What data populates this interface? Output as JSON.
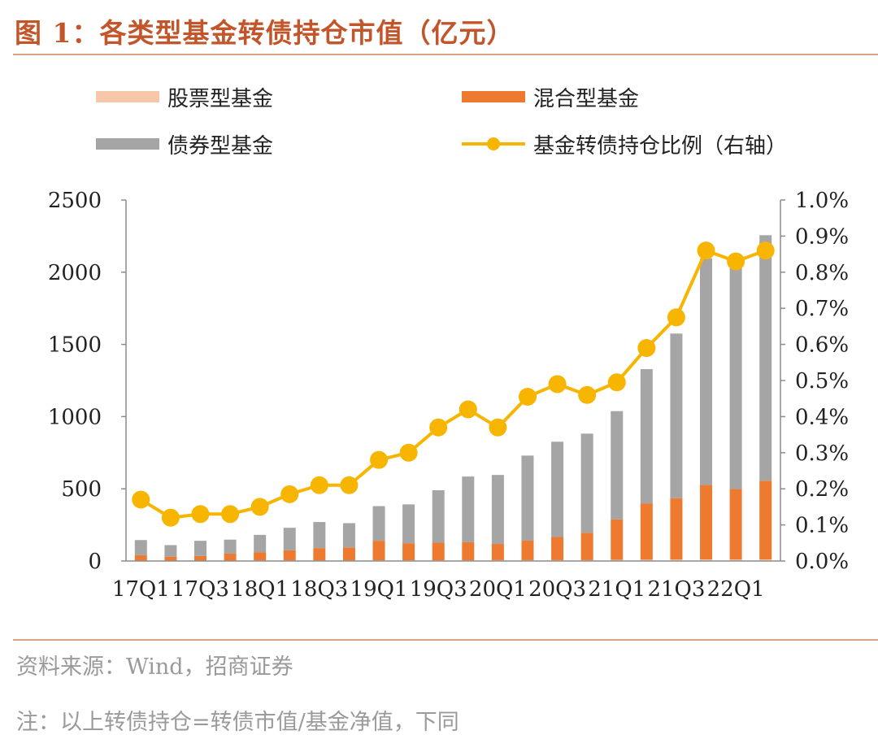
{
  "figure_title": "图 1：各类型基金转债持仓市值（亿元）",
  "source": "资料来源：Wind，招商证券",
  "note": "注：以上转债持仓=转债市值/基金净值，下同",
  "colors": {
    "title": "#c2552a",
    "rule": "#d9a58a",
    "stock": "#f6c7a8",
    "mixed": "#ee7a30",
    "bond": "#a5a5a5",
    "ratio": "#f7b500",
    "axis": "#8c8c8c",
    "text": "#222222",
    "muted": "#9a9a9a"
  },
  "chart_data": {
    "type": "bar",
    "stacked": true,
    "categories": [
      "17Q1",
      "17Q2",
      "17Q3",
      "17Q4",
      "18Q1",
      "18Q2",
      "18Q3",
      "18Q4",
      "19Q1",
      "19Q2",
      "19Q3",
      "19Q4",
      "20Q1",
      "20Q2",
      "20Q3",
      "20Q4",
      "21Q1",
      "21Q2",
      "21Q3",
      "21Q4",
      "22Q1",
      "22Q2"
    ],
    "xtick_labels": [
      "17Q1",
      "",
      "17Q3",
      "",
      "18Q1",
      "",
      "18Q3",
      "",
      "19Q1",
      "",
      "19Q3",
      "",
      "20Q1",
      "",
      "20Q3",
      "",
      "21Q1",
      "",
      "21Q3",
      "",
      "22Q1",
      ""
    ],
    "series": [
      {
        "name": "股票型基金",
        "axis": "left",
        "values": [
          3,
          3,
          3,
          3,
          4,
          4,
          4,
          4,
          5,
          5,
          5,
          5,
          6,
          6,
          6,
          6,
          8,
          9,
          10,
          11,
          10,
          11
        ]
      },
      {
        "name": "混合型基金",
        "axis": "left",
        "values": [
          37,
          27,
          32,
          48,
          57,
          70,
          85,
          90,
          135,
          118,
          122,
          125,
          112,
          135,
          160,
          190,
          280,
          390,
          425,
          515,
          488,
          545
        ]
      },
      {
        "name": "债券型基金",
        "axis": "left",
        "values": [
          105,
          80,
          105,
          97,
          120,
          156,
          181,
          168,
          240,
          269,
          363,
          455,
          478,
          589,
          660,
          686,
          750,
          930,
          1140,
          1570,
          1580,
          1700
        ]
      },
      {
        "name": "基金转债持仓比例（右轴）",
        "type": "line",
        "axis": "right",
        "unit": "%",
        "values": [
          0.17,
          0.12,
          0.13,
          0.13,
          0.15,
          0.185,
          0.21,
          0.21,
          0.28,
          0.3,
          0.37,
          0.42,
          0.37,
          0.455,
          0.49,
          0.46,
          0.495,
          0.59,
          0.675,
          0.86,
          0.83,
          0.86
        ]
      }
    ],
    "legend": [
      {
        "label": "股票型基金",
        "key": "stock",
        "kind": "bar"
      },
      {
        "label": "混合型基金",
        "key": "mixed",
        "kind": "bar"
      },
      {
        "label": "债券型基金",
        "key": "bond",
        "kind": "bar"
      },
      {
        "label": "基金转债持仓比例（右轴）",
        "key": "ratio",
        "kind": "line"
      }
    ],
    "ylim": [
      0,
      2500
    ],
    "yticks": [
      0,
      500,
      1000,
      1500,
      2000,
      2500
    ],
    "y2lim": [
      0,
      1.0
    ],
    "y2ticks": [
      "0.0%",
      "0.1%",
      "0.2%",
      "0.3%",
      "0.4%",
      "0.5%",
      "0.6%",
      "0.7%",
      "0.8%",
      "0.9%",
      "1.0%"
    ],
    "legend_position": "top",
    "grid": false
  }
}
